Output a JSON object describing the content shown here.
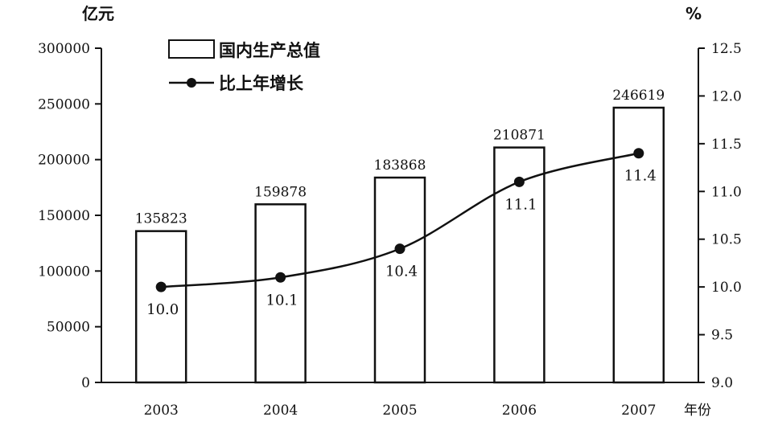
{
  "chart_data": {
    "type": "bar",
    "categories": [
      "2003",
      "2004",
      "2005",
      "2006",
      "2007"
    ],
    "series": [
      {
        "name": "国内生产总值",
        "type": "bar",
        "axis": "left",
        "values": [
          135823,
          159878,
          183868,
          210871,
          246619
        ]
      },
      {
        "name": "比上年增长",
        "type": "line",
        "axis": "right",
        "values": [
          10.0,
          10.1,
          10.4,
          11.1,
          11.4
        ]
      }
    ],
    "value_labels": [
      "135823",
      "159878",
      "183868",
      "210871",
      "246619"
    ],
    "pct_labels": [
      "10.0",
      "10.1",
      "10.4",
      "11.1",
      "11.4"
    ],
    "ylabel_left": "亿元",
    "ylabel_right": "%",
    "xlabel": "年份",
    "ylim_left": [
      0,
      300000
    ],
    "ylim_right": [
      9.0,
      12.5
    ],
    "yticks_left": [
      "0",
      "50000",
      "100000",
      "150000",
      "200000",
      "250000",
      "300000"
    ],
    "yticks_right": [
      "9.0",
      "9.5",
      "10.0",
      "10.5",
      "11.0",
      "11.5",
      "12.0",
      "12.5"
    ],
    "legend": {
      "placement": "top-left",
      "items": [
        "国内生产总值",
        "比上年增长"
      ]
    },
    "grid": false,
    "colors": {
      "bar_fill": "#ffffff",
      "bar_stroke": "#111111",
      "line": "#111111",
      "marker": "#111111"
    }
  }
}
